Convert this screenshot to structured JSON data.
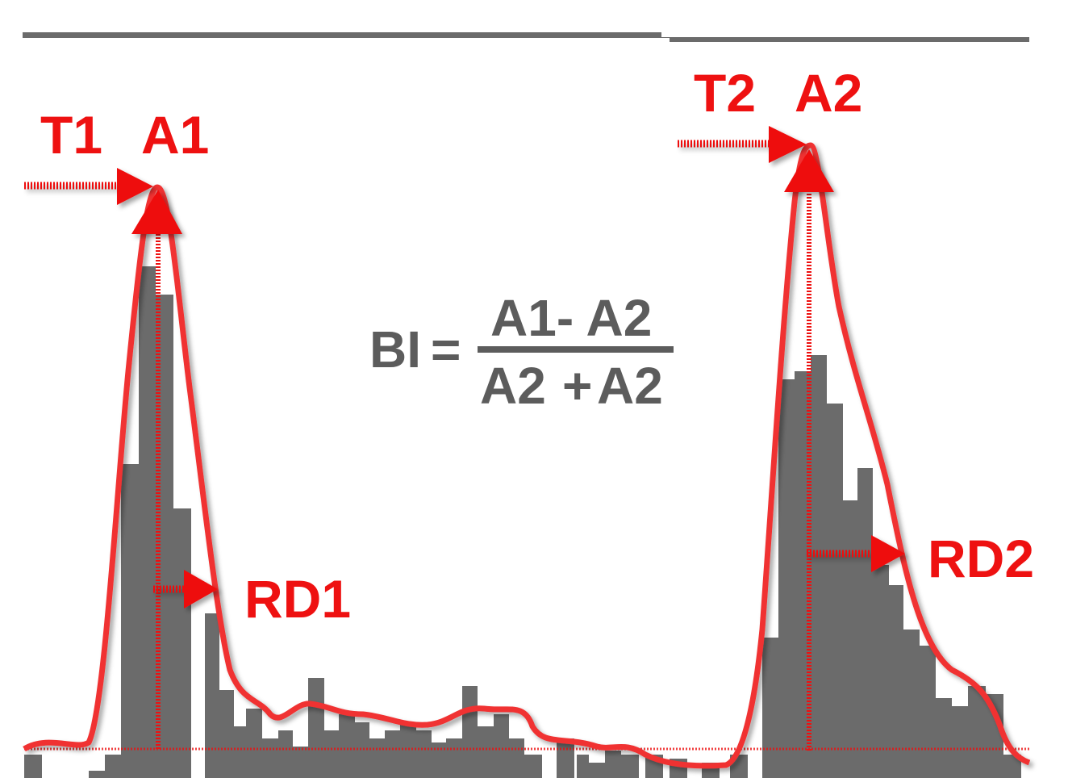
{
  "labels": {
    "t1": "T1",
    "a1": "A1",
    "t2": "T2",
    "a2": "A2",
    "rd1": "RD1",
    "rd2": "RD2"
  },
  "formula": {
    "lhs": "BI",
    "equals": "=",
    "numerator": "A1- A2",
    "denominator_left": "A2",
    "plus": "+",
    "denominator_right": "A2"
  },
  "colors": {
    "bars": "#6b6b6b",
    "curve": "#f03030",
    "annotation": "#ee1111",
    "formula_text": "#5c5c5c",
    "stimulus_bar": "#6b6b6b"
  }
}
